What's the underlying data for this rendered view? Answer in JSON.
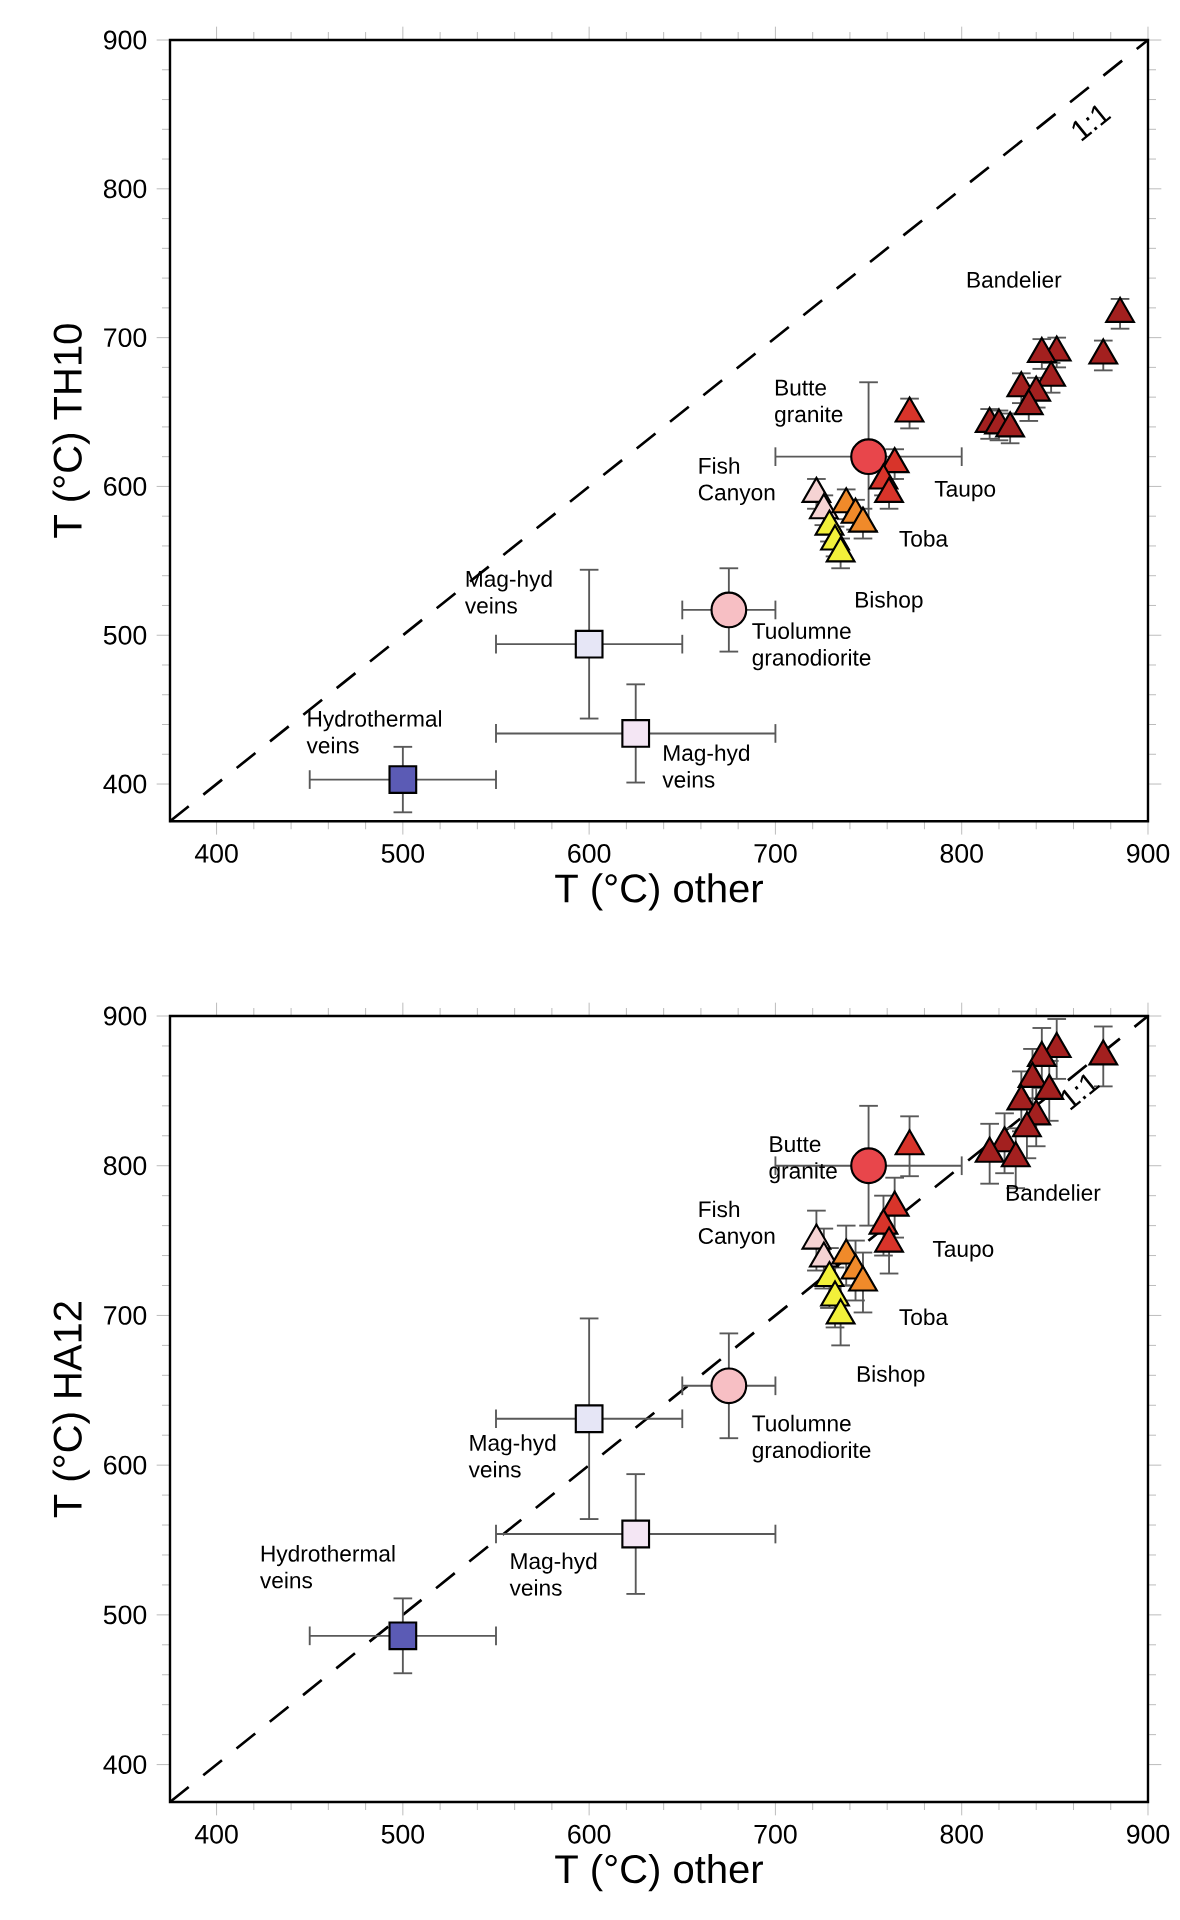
{
  "chart_data": [
    {
      "type": "scatter",
      "xlabel": "T (°C) other",
      "ylabel": "T (°C) TH10",
      "xlim": [
        375,
        900
      ],
      "ylim": [
        375,
        900
      ],
      "xticks": [
        400,
        500,
        600,
        700,
        800,
        900
      ],
      "yticks": [
        400,
        500,
        600,
        700,
        800,
        900
      ],
      "series": [
        {
          "type": "line",
          "line_style": "dashed",
          "color": "#000000",
          "x": [
            375,
            900
          ],
          "values": [
            375,
            900
          ]
        },
        {
          "marker": "square",
          "color": "#5b5bb5",
          "x": [
            500
          ],
          "values": [
            403
          ],
          "errors": [
            22
          ],
          "xerrors": [
            50
          ]
        },
        {
          "marker": "square",
          "color": "#e6e6f6",
          "x": [
            600
          ],
          "values": [
            494
          ],
          "errors": [
            50
          ],
          "xerrors": [
            50
          ]
        },
        {
          "marker": "square",
          "color": "#f4e6f4",
          "x": [
            625
          ],
          "values": [
            434
          ],
          "errors": [
            33
          ],
          "xerrors": [
            75
          ]
        },
        {
          "marker": "circle",
          "color": "#f7bfc4",
          "x": [
            675
          ],
          "values": [
            517
          ],
          "errors": [
            28
          ],
          "xerrors": [
            25
          ]
        },
        {
          "marker": "circle",
          "color": "#e8464b",
          "x": [
            750
          ],
          "values": [
            620
          ],
          "errors": [
            50
          ],
          "xerrors": [
            50
          ]
        },
        {
          "marker": "triangle",
          "color": "#a3201f",
          "x": [
            885,
            851,
            843,
            876,
            848,
            832,
            840,
            836,
            815,
            820,
            826
          ],
          "values": [
            716,
            690,
            689,
            688,
            673,
            666,
            663,
            654,
            642,
            641,
            639
          ],
          "errors": [
            10,
            10,
            10,
            10,
            10,
            10,
            10,
            10,
            10,
            10,
            10
          ]
        },
        {
          "marker": "triangle",
          "color": "#d8342a",
          "x": [
            772,
            764,
            758,
            761
          ],
          "values": [
            649,
            615,
            604,
            595
          ],
          "errors": [
            10,
            10,
            10,
            10
          ]
        },
        {
          "marker": "triangle",
          "color": "#f5d3d3",
          "x": [
            722,
            726
          ],
          "values": [
            595,
            584
          ],
          "errors": [
            10,
            10
          ]
        },
        {
          "marker": "triangle",
          "color": "#f08a2a",
          "x": [
            738,
            743,
            747
          ],
          "values": [
            588,
            581,
            575
          ],
          "errors": [
            10,
            10,
            10
          ]
        },
        {
          "marker": "triangle",
          "color": "#f2f03a",
          "x": [
            729,
            732,
            735
          ],
          "values": [
            573,
            563,
            555
          ],
          "errors": [
            10,
            10,
            10
          ]
        }
      ],
      "annotations": [
        "Hydrothermal veins",
        "Mag-hyd veins",
        "Mag-hyd veins",
        "Tuolumne granodiorite",
        "Fish Canyon",
        "Butte granite",
        "Bandelier",
        "Taupo",
        "Toba",
        "Bishop",
        "1:1"
      ]
    },
    {
      "type": "scatter",
      "xlabel": "T (°C) other",
      "ylabel": "T (°C) HA12",
      "xlim": [
        375,
        900
      ],
      "ylim": [
        375,
        900
      ],
      "xticks": [
        400,
        500,
        600,
        700,
        800,
        900
      ],
      "yticks": [
        400,
        500,
        600,
        700,
        800,
        900
      ],
      "series": [
        {
          "type": "line",
          "line_style": "dashed",
          "color": "#000000",
          "x": [
            375,
            900
          ],
          "values": [
            375,
            900
          ]
        },
        {
          "marker": "square",
          "color": "#5b5bb5",
          "x": [
            500
          ],
          "values": [
            486
          ],
          "errors": [
            25
          ],
          "xerrors": [
            50
          ]
        },
        {
          "marker": "square",
          "color": "#e6e6f6",
          "x": [
            600
          ],
          "values": [
            631
          ],
          "errors": [
            67
          ],
          "xerrors": [
            50
          ]
        },
        {
          "marker": "square",
          "color": "#f4e6f4",
          "x": [
            625
          ],
          "values": [
            554
          ],
          "errors": [
            40
          ],
          "xerrors": [
            75
          ]
        },
        {
          "marker": "circle",
          "color": "#f7bfc4",
          "x": [
            675
          ],
          "values": [
            653
          ],
          "errors": [
            35
          ],
          "xerrors": [
            25
          ]
        },
        {
          "marker": "circle",
          "color": "#e8464b",
          "x": [
            750
          ],
          "values": [
            800
          ],
          "errors": [
            40
          ],
          "xerrors": [
            50
          ]
        },
        {
          "marker": "triangle",
          "color": "#a3201f",
          "x": [
            876,
            851,
            843,
            838,
            847,
            832,
            840,
            835,
            823,
            815,
            829
          ],
          "values": [
            873,
            878,
            872,
            858,
            850,
            843,
            833,
            825,
            815,
            808,
            805
          ],
          "errors": [
            20,
            20,
            20,
            20,
            20,
            20,
            20,
            20,
            20,
            20,
            20
          ]
        },
        {
          "marker": "triangle",
          "color": "#d8342a",
          "x": [
            772,
            764,
            758,
            761
          ],
          "values": [
            813,
            772,
            760,
            748
          ],
          "errors": [
            20,
            20,
            20,
            20
          ]
        },
        {
          "marker": "triangle",
          "color": "#f5d3d3",
          "x": [
            722,
            726
          ],
          "values": [
            750,
            738
          ],
          "errors": [
            20,
            20
          ]
        },
        {
          "marker": "triangle",
          "color": "#f08a2a",
          "x": [
            738,
            743,
            747
          ],
          "values": [
            740,
            730,
            722
          ],
          "errors": [
            20,
            20,
            20
          ]
        },
        {
          "marker": "triangle",
          "color": "#f2f03a",
          "x": [
            729,
            732,
            735
          ],
          "values": [
            725,
            712,
            700
          ],
          "errors": [
            20,
            20,
            20
          ]
        }
      ],
      "annotations": [
        "Hydrothermal veins",
        "Mag-hyd veins",
        "Mag-hyd veins",
        "Tuolumne granodiorite",
        "Fish Canyon",
        "Butte granite",
        "Bandelier",
        "Taupo",
        "Toba",
        "Bishop",
        "1:1"
      ]
    }
  ]
}
